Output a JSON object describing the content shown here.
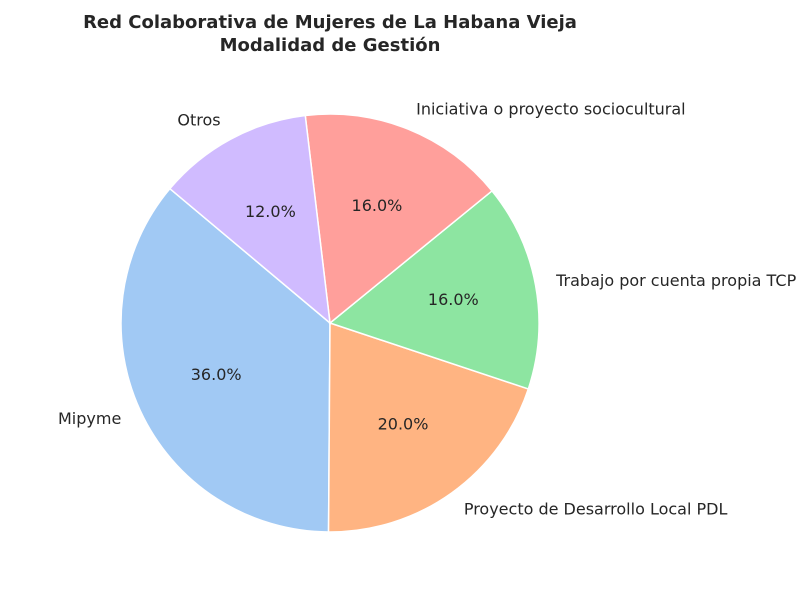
{
  "chart_data": {
    "type": "pie",
    "title": "Red Colaborativa de Mujeres de La Habana Vieja",
    "subtitle": "Modalidad de Gestión",
    "categories": [
      "Mipyme",
      "Proyecto de Desarrollo Local PDL",
      "Trabajo por cuenta propia TCP",
      "Iniciativa o proyecto sociocultural",
      "Otros"
    ],
    "values": [
      36,
      20,
      16,
      16,
      12
    ],
    "value_labels": [
      "36.0%",
      "20.0%",
      "16.0%",
      "16.0%",
      "12.0%"
    ],
    "colors": [
      "#a1c9f4",
      "#ffb482",
      "#8de5a1",
      "#ff9f9b",
      "#d0bbff"
    ]
  }
}
